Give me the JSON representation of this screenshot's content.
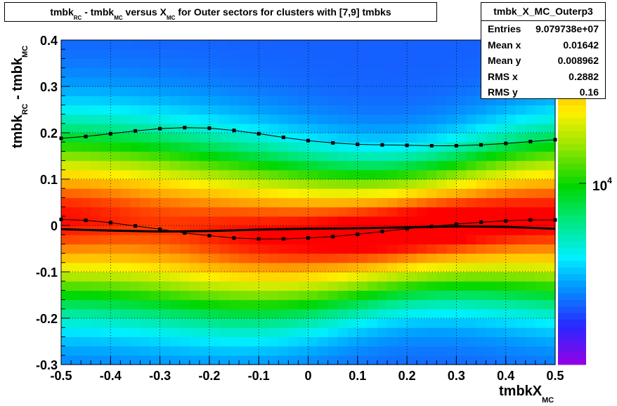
{
  "title": {
    "part1": "tmbk",
    "sub1": "RC",
    "part2": " - tmbk",
    "sub2": "MC",
    "part3": " versus X",
    "sub3": "MC",
    "part4": " for Outer sectors for clusters with [7,9] tmbks"
  },
  "stats": {
    "name": "tmbk_X_MC_Outerp3",
    "rows": [
      {
        "label": "Entries",
        "value": "9.079738e+07"
      },
      {
        "label": "Mean x",
        "value": "0.01642"
      },
      {
        "label": "Mean y",
        "value": "0.008962"
      },
      {
        "label": "RMS x",
        "value": "0.2882"
      },
      {
        "label": "RMS y",
        "value": "0.16"
      }
    ]
  },
  "axes": {
    "ylabel_main1": "tmbk",
    "ylabel_sub1": "RC",
    "ylabel_main2": " - tmbk",
    "ylabel_sub2": "MC",
    "xlabel_main": "tmbkX",
    "xlabel_sub": "MC"
  },
  "colorbar": {
    "tick_base": "10",
    "tick_exp": "4"
  },
  "chart_data": {
    "type": "heatmap",
    "xlim": [
      -0.5,
      0.5
    ],
    "ylim": [
      -0.3,
      0.4
    ],
    "xticks": [
      "-0.5",
      "-0.4",
      "-0.3",
      "-0.2",
      "-0.1",
      "0",
      "0.1",
      "0.2",
      "0.3",
      "0.4",
      "0.5"
    ],
    "yticks": [
      "-0.3",
      "-0.2",
      "-0.1",
      "0",
      "0.1",
      "0.2",
      "0.3",
      "0.4"
    ],
    "grid": true,
    "colorbar_scale": "log",
    "series": [
      {
        "style": "markers",
        "x": [
          -0.5,
          -0.45,
          -0.4,
          -0.35,
          -0.3,
          -0.25,
          -0.2,
          -0.15,
          -0.1,
          -0.05,
          0,
          0.05,
          0.1,
          0.15,
          0.2,
          0.25,
          0.3,
          0.35,
          0.4,
          0.45,
          0.5
        ],
        "y": [
          0.188,
          0.192,
          0.198,
          0.204,
          0.209,
          0.211,
          0.21,
          0.205,
          0.198,
          0.19,
          0.183,
          0.178,
          0.175,
          0.174,
          0.173,
          0.172,
          0.172,
          0.174,
          0.177,
          0.181,
          0.185
        ]
      },
      {
        "style": "markers",
        "x": [
          -0.5,
          -0.45,
          -0.4,
          -0.35,
          -0.3,
          -0.25,
          -0.2,
          -0.15,
          -0.1,
          -0.05,
          0,
          0.05,
          0.1,
          0.15,
          0.2,
          0.25,
          0.3,
          0.35,
          0.4,
          0.45,
          0.5
        ],
        "y": [
          0.013,
          0.011,
          0.006,
          -0.001,
          -0.008,
          -0.016,
          -0.022,
          -0.027,
          -0.029,
          -0.029,
          -0.027,
          -0.024,
          -0.019,
          -0.013,
          -0.007,
          -0.002,
          0.003,
          0.007,
          0.01,
          0.012,
          0.012
        ]
      },
      {
        "style": "line",
        "x": [
          -0.5,
          -0.4,
          -0.3,
          -0.2,
          -0.1,
          0,
          0.1,
          0.2,
          0.3,
          0.4,
          0.5
        ],
        "y": [
          -0.008,
          -0.011,
          -0.013,
          -0.012,
          -0.009,
          -0.007,
          -0.006,
          -0.004,
          -0.002,
          -0.003,
          -0.007
        ]
      }
    ]
  }
}
